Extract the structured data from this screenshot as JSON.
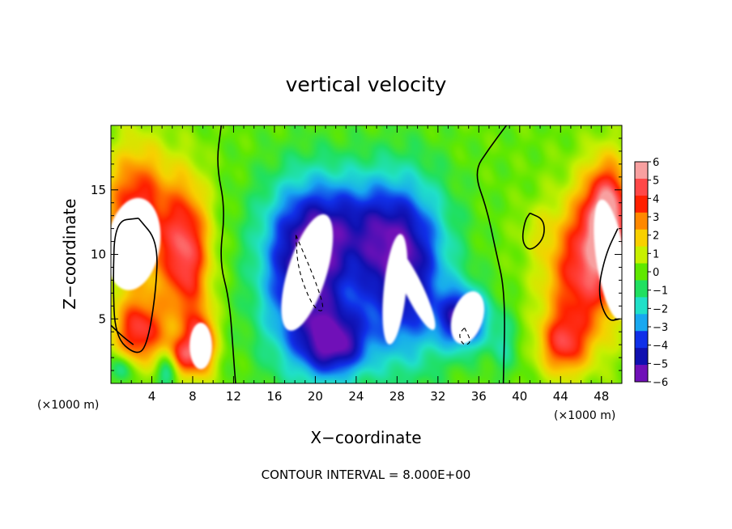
{
  "chart_data": {
    "type": "heatmap",
    "title": "vertical velocity",
    "xlabel": "X−coordinate",
    "ylabel": "Z−coordinate",
    "x_unit_label": "(×1000 m)",
    "y_unit_label": "(×1000 m)",
    "xlim": [
      0,
      50
    ],
    "ylim": [
      0,
      20
    ],
    "x_ticks": [
      {
        "value": 4,
        "label": "4"
      },
      {
        "value": 8,
        "label": "8"
      },
      {
        "value": 12,
        "label": "12"
      },
      {
        "value": 16,
        "label": "16"
      },
      {
        "value": 20,
        "label": "20"
      },
      {
        "value": 24,
        "label": "24"
      },
      {
        "value": 28,
        "label": "28"
      },
      {
        "value": 32,
        "label": "32"
      },
      {
        "value": 36,
        "label": "36"
      },
      {
        "value": 40,
        "label": "40"
      },
      {
        "value": 44,
        "label": "44"
      },
      {
        "value": 48,
        "label": "48"
      }
    ],
    "y_ticks": [
      {
        "value": 5,
        "label": "5"
      },
      {
        "value": 10,
        "label": "10"
      },
      {
        "value": 15,
        "label": "15"
      }
    ],
    "colorbar": {
      "range": [
        -6,
        6
      ],
      "labels": [
        "6",
        "5",
        "4",
        "3",
        "2",
        "1",
        "0",
        "−1",
        "−2",
        "−3",
        "−4",
        "−5",
        "−6"
      ],
      "values": [
        6,
        5,
        4,
        3,
        2,
        1,
        0,
        -1,
        -2,
        -3,
        -4,
        -5,
        -6
      ],
      "colors": [
        "#f8a0a0",
        "#ff4848",
        "#ff2000",
        "#ff8800",
        "#f8d000",
        "#c8f000",
        "#60e800",
        "#20e060",
        "#20e0c8",
        "#18a8f0",
        "#1030e8",
        "#1010b0",
        "#7010b8"
      ]
    },
    "background_value": 0,
    "features": [
      {
        "x": 2.6,
        "z": 13.0,
        "rx": 3.2,
        "rz": 5.2,
        "value": 4.8
      },
      {
        "x": 2.8,
        "z": 4.0,
        "rx": 2.6,
        "rz": 2.6,
        "value": 4.5
      },
      {
        "x": 7.4,
        "z": 10.0,
        "rx": 2.3,
        "rz": 5.5,
        "value": 5.0
      },
      {
        "x": 8.8,
        "z": 3.0,
        "rx": 1.4,
        "rz": 2.4,
        "value": 4.8
      },
      {
        "x": 6.8,
        "z": 2.0,
        "rx": 1.3,
        "rz": 1.6,
        "value": 3.5
      },
      {
        "x": 5.6,
        "z": 1.0,
        "rx": 1.2,
        "rz": 1.4,
        "value": -2.6
      },
      {
        "x": 1.0,
        "z": 1.1,
        "rx": 1.1,
        "rz": 1.1,
        "value": -2.2
      },
      {
        "x": 19.0,
        "z": 8.0,
        "rx": 4.3,
        "rz": 6.5,
        "value": -5.5
      },
      {
        "x": 28.5,
        "z": 8.5,
        "rx": 4.4,
        "rz": 6.6,
        "value": -5.5
      },
      {
        "x": 23.0,
        "z": 12.5,
        "rx": 6.5,
        "rz": 4.0,
        "value": -3.0
      },
      {
        "x": 34.5,
        "z": 5.0,
        "rx": 2.4,
        "rz": 2.3,
        "value": -5.0
      },
      {
        "x": 22.0,
        "z": 3.0,
        "rx": 3.2,
        "rz": 2.6,
        "value": -4.4
      },
      {
        "x": 38.5,
        "z": 3.0,
        "rx": 1.5,
        "rz": 2.5,
        "value": -1.4
      },
      {
        "x": 46.2,
        "z": 8.5,
        "rx": 3.8,
        "rz": 5.5,
        "value": 4.6
      },
      {
        "x": 48.6,
        "z": 13.0,
        "rx": 2.3,
        "rz": 4.2,
        "value": 5.8
      },
      {
        "x": 44.2,
        "z": 3.0,
        "rx": 2.3,
        "rz": 2.3,
        "value": 3.6
      },
      {
        "x": 41.3,
        "z": 12.0,
        "rx": 1.7,
        "rz": 1.8,
        "value": 0.6
      }
    ],
    "saturated_regions_white": [
      {
        "x": 2.2,
        "z": 10.8,
        "rx": 2.6,
        "rz": 3.6,
        "rot": 0.15
      },
      {
        "x": 8.8,
        "z": 2.9,
        "rx": 1.1,
        "rz": 1.8,
        "rot": 0
      },
      {
        "x": 19.2,
        "z": 8.6,
        "rx": 1.9,
        "rz": 4.7,
        "rot": 0.3
      },
      {
        "x": 27.8,
        "z": 7.3,
        "rx": 1.1,
        "rz": 4.3,
        "rot": 0.1
      },
      {
        "x": 29.6,
        "z": 7.4,
        "rx": 0.9,
        "rz": 3.6,
        "rot": -0.45
      },
      {
        "x": 34.9,
        "z": 5.1,
        "rx": 1.5,
        "rz": 2.1,
        "rot": 0.3
      },
      {
        "x": 48.9,
        "z": 9.6,
        "rx": 1.4,
        "rz": 4.7,
        "rot": -0.15
      }
    ],
    "zero_contours": [
      {
        "style": "solid",
        "points": [
          [
            10.8,
            20
          ],
          [
            10.3,
            17
          ],
          [
            11.2,
            13.5
          ],
          [
            10.6,
            9.5
          ],
          [
            11.6,
            6.5
          ],
          [
            12.0,
            2
          ],
          [
            12.2,
            0
          ]
        ]
      },
      {
        "style": "solid",
        "points": [
          [
            38.7,
            20
          ],
          [
            37.0,
            18.2
          ],
          [
            35.5,
            16.4
          ],
          [
            36.8,
            13.5
          ],
          [
            37.6,
            10.5
          ],
          [
            38.6,
            7
          ],
          [
            38.4,
            0
          ]
        ]
      },
      {
        "style": "solid",
        "points": [
          [
            2.7,
            12.8
          ],
          [
            0.4,
            12.6
          ],
          [
            0.2,
            8.0
          ],
          [
            0.4,
            3.6
          ],
          [
            2.4,
            2.2
          ],
          [
            3.5,
            2.8
          ],
          [
            4.4,
            7.0
          ],
          [
            4.6,
            11.0
          ],
          [
            2.7,
            12.8
          ]
        ]
      },
      {
        "style": "solid",
        "points": [
          [
            0,
            4.5
          ],
          [
            1.2,
            3.6
          ],
          [
            2.2,
            3.0
          ]
        ]
      },
      {
        "style": "dashed",
        "points": [
          [
            18.1,
            11.5
          ],
          [
            20.0,
            8.0
          ],
          [
            21.0,
            5.5
          ],
          [
            19.8,
            5.8
          ],
          [
            18.3,
            8.8
          ],
          [
            18.1,
            11.5
          ]
        ]
      },
      {
        "style": "dashed",
        "points": [
          [
            34.6,
            4.3
          ],
          [
            35.3,
            3.2
          ],
          [
            34.5,
            2.9
          ],
          [
            34.0,
            3.8
          ],
          [
            34.6,
            4.3
          ]
        ]
      },
      {
        "style": "solid",
        "points": [
          [
            41.0,
            13.2
          ],
          [
            42.4,
            12.7
          ],
          [
            42.4,
            11.2
          ],
          [
            41.0,
            10.2
          ],
          [
            40.2,
            11.0
          ],
          [
            40.5,
            12.6
          ],
          [
            41.0,
            13.2
          ]
        ]
      },
      {
        "style": "solid",
        "points": [
          [
            49.6,
            12.0
          ],
          [
            48.4,
            10.0
          ],
          [
            47.6,
            7.0
          ],
          [
            48.6,
            4.8
          ],
          [
            49.8,
            5.0
          ]
        ]
      }
    ],
    "contour_interval_text": "CONTOUR INTERVAL = 8.000E+00"
  }
}
